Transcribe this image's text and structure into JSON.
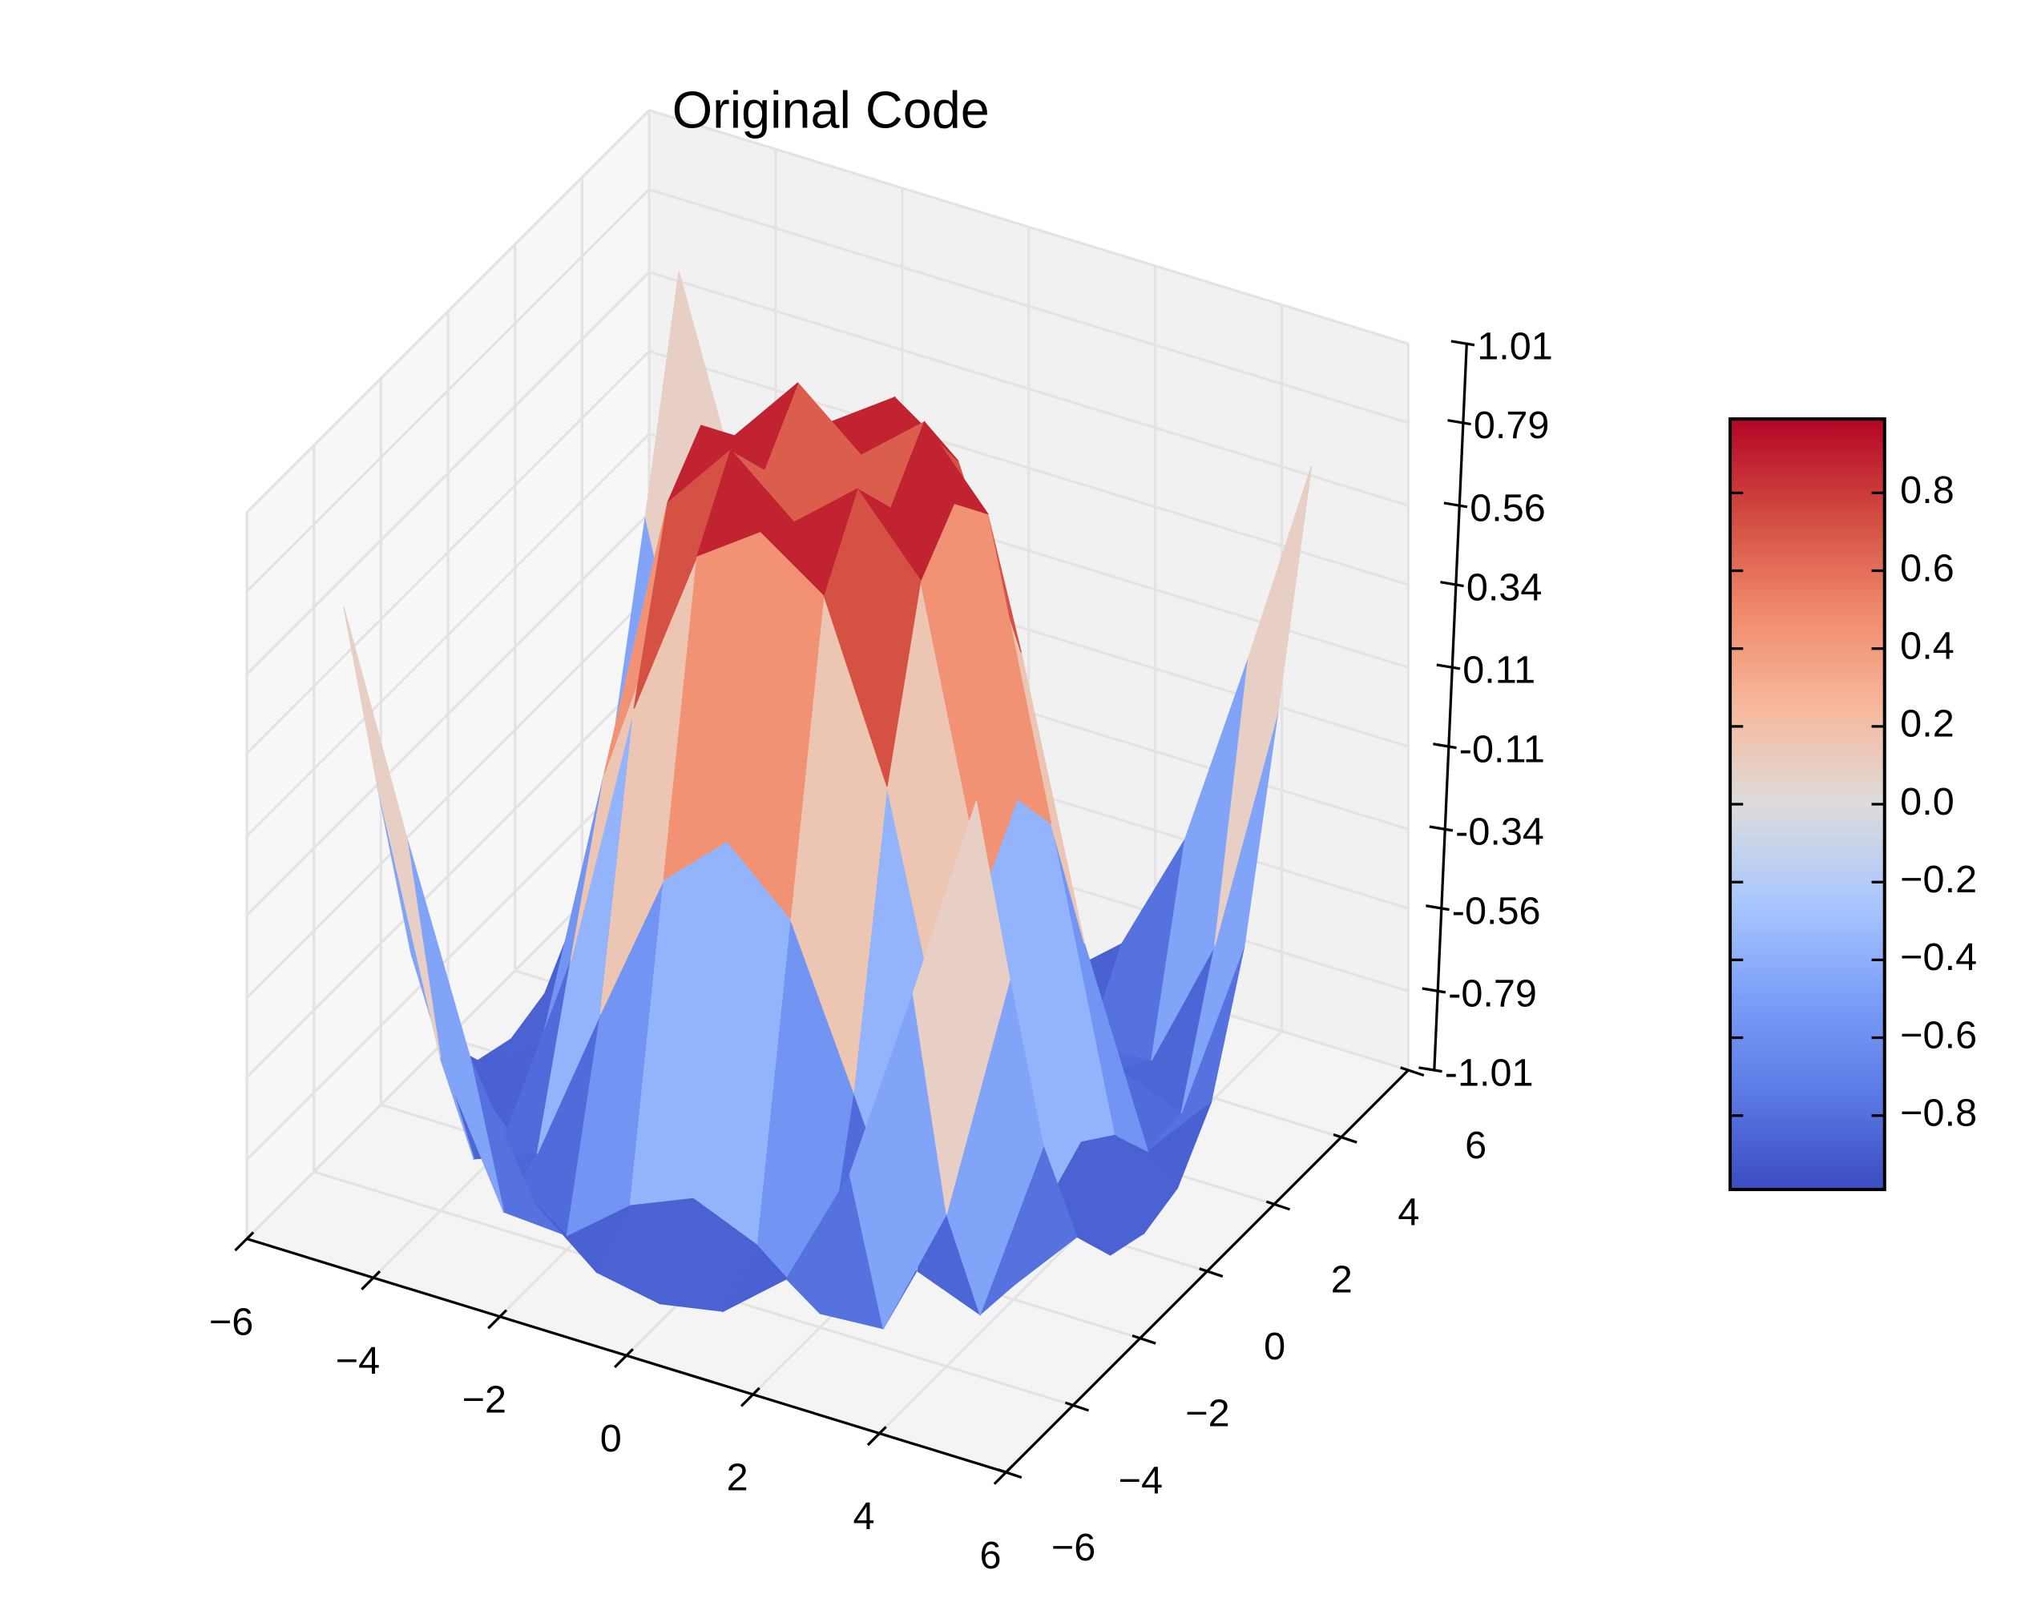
{
  "chart_data": {
    "type": "surface3d",
    "title": "Original Code",
    "x": [
      -5,
      -4,
      -3,
      -2,
      -1,
      0,
      1,
      2,
      3,
      4,
      5
    ],
    "y": [
      -5,
      -4,
      -3,
      -2,
      -1,
      0,
      1,
      2,
      3,
      4,
      5
    ],
    "z": [
      [
        0.709,
        0.12,
        -0.437,
        -0.782,
        -0.926,
        -0.959,
        -0.926,
        -0.782,
        -0.437,
        0.12,
        0.709
      ],
      [
        0.12,
        -0.586,
        -0.959,
        -0.971,
        -0.831,
        -0.757,
        -0.831,
        -0.971,
        -0.959,
        -0.586,
        0.12
      ],
      [
        -0.437,
        -0.959,
        -0.891,
        -0.448,
        -0.02,
        0.141,
        -0.02,
        -0.448,
        -0.891,
        -0.959,
        -0.437
      ],
      [
        -0.782,
        -0.971,
        -0.448,
        0.308,
        0.787,
        0.909,
        0.787,
        0.308,
        -0.448,
        -0.971,
        -0.782
      ],
      [
        -0.926,
        -0.831,
        -0.02,
        0.787,
        0.988,
        0.841,
        0.988,
        0.787,
        -0.02,
        -0.831,
        -0.926
      ],
      [
        -0.959,
        -0.757,
        0.141,
        0.909,
        0.841,
        0,
        0.841,
        0.909,
        0.141,
        -0.757,
        -0.959
      ],
      [
        -0.926,
        -0.831,
        -0.02,
        0.787,
        0.988,
        0.841,
        0.988,
        0.787,
        -0.02,
        -0.831,
        -0.926
      ],
      [
        -0.782,
        -0.971,
        -0.448,
        0.308,
        0.787,
        0.909,
        0.787,
        0.308,
        -0.448,
        -0.971,
        -0.782
      ],
      [
        -0.437,
        -0.959,
        -0.891,
        -0.448,
        -0.02,
        0.141,
        -0.02,
        -0.448,
        -0.891,
        -0.959,
        -0.437
      ],
      [
        0.12,
        -0.586,
        -0.959,
        -0.971,
        -0.831,
        -0.757,
        -0.831,
        -0.971,
        -0.959,
        -0.586,
        0.12
      ],
      [
        0.709,
        0.12,
        -0.437,
        -0.782,
        -0.926,
        -0.959,
        -0.926,
        -0.782,
        -0.437,
        0.12,
        0.709
      ]
    ],
    "xlim": [
      -6,
      6
    ],
    "xticks": [
      {
        "value": -6,
        "label": "−6"
      },
      {
        "value": -4,
        "label": "−4"
      },
      {
        "value": -2,
        "label": "−2"
      },
      0,
      2,
      4,
      6
    ],
    "ylim": [
      -6,
      6
    ],
    "yticks": [
      {
        "value": -6,
        "label": "−6"
      },
      {
        "value": -4,
        "label": "−4"
      },
      {
        "value": -2,
        "label": "−2"
      },
      0,
      2,
      4,
      6
    ],
    "zlim": [
      -1.01,
      1.01
    ],
    "zticks": [
      -1.01,
      -0.79,
      -0.56,
      -0.34,
      -0.11,
      0.11,
      0.34,
      0.56,
      0.79,
      1.01
    ],
    "colormap": [
      "#3b4cc0",
      "#5b7ae5",
      "#7b9ff9",
      "#aac7fd",
      "#dddcdc",
      "#f7b89c",
      "#f08a6c",
      "#d24b40",
      "#b40426"
    ],
    "colorbar": {
      "clim": [
        -0.99,
        0.99
      ],
      "ticks": [
        {
          "value": -0.8,
          "label": "−0.8"
        },
        {
          "value": -0.6,
          "label": "−0.6"
        },
        {
          "value": -0.4,
          "label": "−0.4"
        },
        {
          "value": -0.2,
          "label": "−0.2"
        },
        {
          "value": 0,
          "label": "0.0"
        },
        0.2,
        0.4,
        0.6,
        0.8
      ]
    },
    "grid": true
  }
}
